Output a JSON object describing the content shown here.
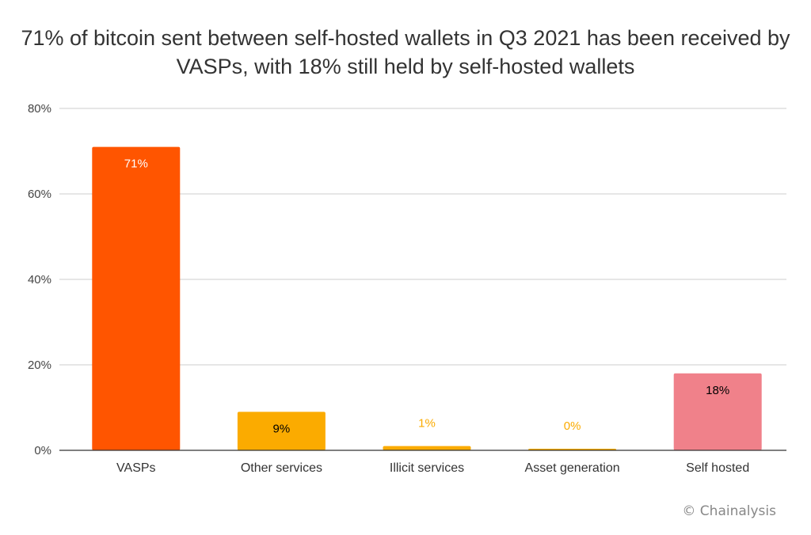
{
  "chart_data": {
    "type": "bar",
    "title": "71% of bitcoin sent between self-hosted wallets in Q3 2021 has been received by VASPs, with 18% still held by self-hosted wallets",
    "categories": [
      "VASPs",
      "Other services",
      "Illicit services",
      "Asset generation",
      "Self hosted"
    ],
    "values": [
      71,
      9,
      1,
      0.3,
      18
    ],
    "data_labels": [
      "71%",
      "9%",
      "1%",
      "0%",
      "18%"
    ],
    "colors": [
      "#ff5500",
      "#fbab00",
      "#fbab00",
      "#fbab00",
      "#f0818a"
    ],
    "label_colors": [
      "#ffffff",
      "#000000",
      "#fbab00",
      "#fbab00",
      "#000000"
    ],
    "xlabel": "",
    "ylabel": "",
    "ylim": [
      0,
      80
    ],
    "yticks": [
      0,
      20,
      40,
      60,
      80
    ],
    "ytick_labels": [
      "0%",
      "20%",
      "40%",
      "60%",
      "80%"
    ],
    "grid": true,
    "legend": "none"
  },
  "credit": "© Chainalysis"
}
